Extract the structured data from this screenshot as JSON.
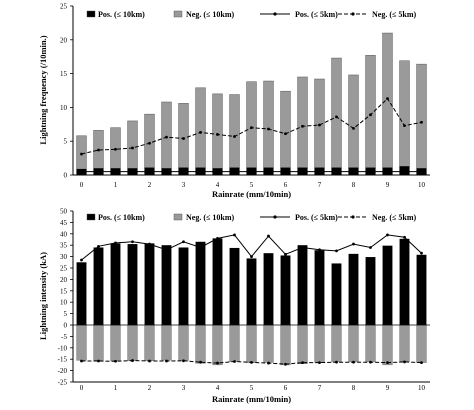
{
  "chart_data": [
    {
      "type": "bar",
      "xlabel": "Rainrate (mm/10min)",
      "ylabel": "Lightning frequency (/10min.)",
      "ylim": [
        0,
        25
      ],
      "yticks": [
        0,
        5,
        10,
        15,
        20,
        25
      ],
      "xticks": [
        "0",
        "1",
        "2",
        "3",
        "4",
        "5",
        "6",
        "7",
        "8",
        "9",
        "10"
      ],
      "x": [
        0,
        0.5,
        1,
        1.5,
        2,
        2.5,
        3,
        3.5,
        4,
        4.5,
        5,
        5.5,
        6,
        6.5,
        7,
        7.5,
        8,
        8.5,
        9,
        9.5,
        10
      ],
      "series": [
        {
          "name": "Pos. (≤ 10km)",
          "kind": "bar",
          "color": "#000000",
          "values": [
            0.9,
            1.0,
            1.0,
            1.0,
            1.1,
            1.0,
            1.1,
            1.1,
            1.0,
            1.1,
            1.1,
            1.1,
            1.1,
            1.1,
            1.1,
            1.1,
            1.1,
            1.1,
            1.1,
            1.3,
            1.0
          ]
        },
        {
          "name": "Neg. (≤ 10km)",
          "kind": "bar",
          "color": "#9a9a9a",
          "values": [
            5.8,
            6.6,
            7.0,
            8.0,
            9.0,
            10.8,
            10.6,
            12.9,
            12.0,
            11.9,
            13.8,
            13.9,
            12.4,
            14.5,
            14.2,
            17.3,
            14.8,
            17.7,
            21.0,
            16.9,
            16.4
          ]
        },
        {
          "name": "Pos. (≤ 5km)",
          "kind": "line",
          "color": "#000000",
          "values": [
            0.5,
            0.5,
            0.5,
            0.5,
            0.5,
            0.5,
            0.5,
            0.5,
            0.5,
            0.5,
            0.5,
            0.5,
            0.5,
            0.5,
            0.5,
            0.5,
            0.5,
            0.5,
            0.5,
            0.5,
            0.5
          ]
        },
        {
          "name": "Neg. (≤ 5km)",
          "kind": "dashed-line",
          "color": "#000000",
          "values": [
            3.1,
            3.7,
            3.8,
            4.0,
            4.7,
            5.6,
            5.4,
            6.3,
            6.0,
            5.7,
            7.0,
            6.8,
            6.1,
            7.2,
            7.4,
            8.6,
            6.9,
            8.9,
            11.3,
            7.3,
            7.8
          ]
        }
      ],
      "legend": "top"
    },
    {
      "type": "bar",
      "xlabel": "Rainrate (mm/10min)",
      "ylabel": "Lightning intensity (kA)",
      "ylim": [
        -25,
        50
      ],
      "yticks": [
        -25,
        -20,
        -15,
        -10,
        -5,
        0,
        5,
        10,
        15,
        20,
        25,
        30,
        35,
        40,
        45,
        50
      ],
      "xticks": [
        "0",
        "1",
        "2",
        "3",
        "4",
        "5",
        "6",
        "7",
        "8",
        "9",
        "10"
      ],
      "x": [
        0,
        0.5,
        1,
        1.5,
        2,
        2.5,
        3,
        3.5,
        4,
        4.5,
        5,
        5.5,
        6,
        6.5,
        7,
        7.5,
        8,
        8.5,
        9,
        9.5,
        10
      ],
      "series": [
        {
          "name": "Pos. (≤ 10km)",
          "kind": "bar",
          "color": "#000000",
          "values": [
            27.5,
            34.0,
            35.8,
            35.5,
            35.8,
            35.0,
            34.0,
            36.5,
            38.0,
            33.8,
            29.2,
            31.5,
            30.5,
            35.0,
            32.8,
            27.0,
            31.2,
            29.8,
            34.8,
            37.8,
            30.8
          ]
        },
        {
          "name": "Neg. (≤ 10km)",
          "kind": "bar",
          "color": "#9a9a9a",
          "values": [
            -15.5,
            -15.5,
            -15.7,
            -15.6,
            -15.7,
            -15.4,
            -15.6,
            -16.8,
            -17.5,
            -16.1,
            -16.5,
            -16.4,
            -17.5,
            -17.0,
            -16.3,
            -16.2,
            -16.2,
            -16.2,
            -17.5,
            -16.0,
            -16.5
          ]
        },
        {
          "name": "Pos. (≤ 5km)",
          "kind": "line",
          "color": "#000000",
          "values": [
            28.5,
            34.5,
            36.0,
            36.5,
            35.5,
            33.0,
            36.5,
            34.0,
            38.0,
            39.5,
            30.0,
            39.0,
            31.0,
            34.0,
            33.0,
            32.5,
            35.5,
            34.0,
            39.5,
            38.5,
            31.5
          ]
        },
        {
          "name": "Neg. (≤ 5km)",
          "kind": "dashed-line",
          "color": "#000000",
          "values": [
            -15.8,
            -15.8,
            -15.9,
            -15.6,
            -15.8,
            -15.8,
            -15.7,
            -16.3,
            -16.7,
            -16.0,
            -16.4,
            -16.7,
            -17.2,
            -16.5,
            -16.5,
            -16.3,
            -16.3,
            -16.3,
            -16.5,
            -16.2,
            -16.5
          ]
        }
      ],
      "legend": "top"
    }
  ]
}
